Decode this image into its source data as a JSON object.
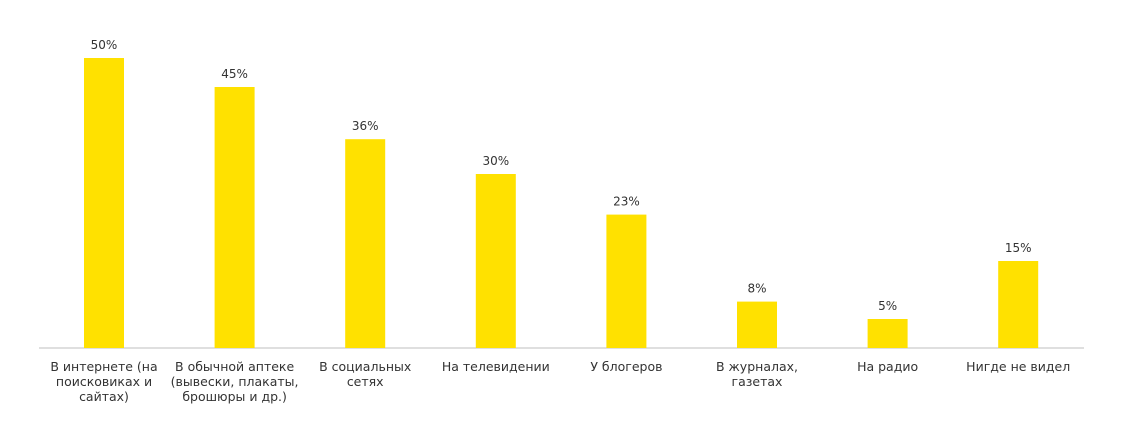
{
  "chart_data": {
    "type": "bar",
    "title": "",
    "xlabel": "",
    "ylabel": "",
    "ylim": [
      0,
      50
    ],
    "grid": false,
    "categories": [
      "В интернете (на поисковиках и сайтах)",
      "В обычной аптеке (вывески, плакаты, брошюры и др.)",
      "В социальных сетях",
      "На телевидении",
      "У блогеров",
      "В журналах, газетах",
      "На радио",
      "Нигде не видел"
    ],
    "category_lines": [
      [
        "В интернете (на",
        "поисковиках и",
        "сайтах)"
      ],
      [
        "В обычной аптеке",
        "(вывески, плакаты,",
        "брошюры и др.)"
      ],
      [
        "В социальных",
        "сетях"
      ],
      [
        "На телевидении"
      ],
      [
        "У блогеров"
      ],
      [
        "В журналах,",
        "газетах"
      ],
      [
        "На радио"
      ],
      [
        "Нигде не видел"
      ]
    ],
    "values": [
      50,
      45,
      36,
      30,
      23,
      8,
      5,
      15
    ],
    "value_labels": [
      "50%",
      "45%",
      "36%",
      "30%",
      "23%",
      "8%",
      "5%",
      "15%"
    ],
    "colors": {
      "bar": "#FFE100",
      "axis": "#BFBFBF",
      "text": "#333333"
    }
  }
}
